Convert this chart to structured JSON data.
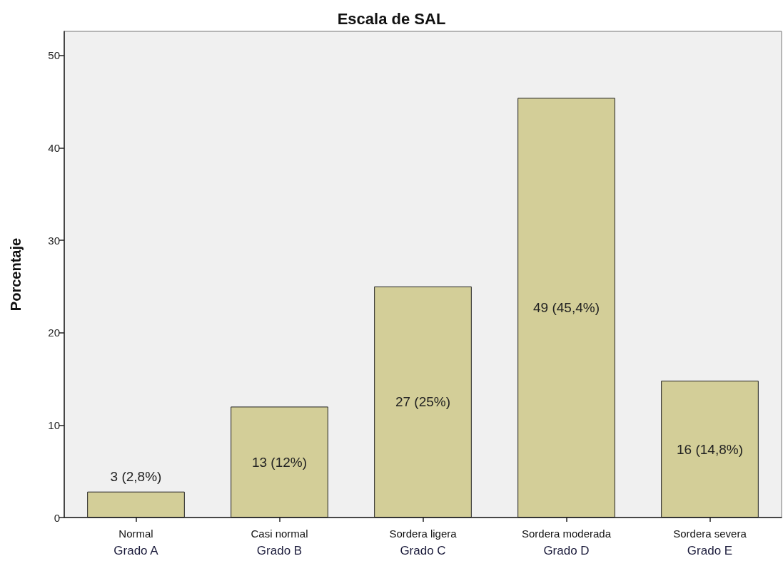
{
  "chart_data": {
    "type": "bar",
    "title": "Escala de SAL",
    "ylabel": "Porcentaje",
    "categories": [
      "Normal\nGrado A",
      "Casi normal\nGrado B",
      "Sordera ligera\nGrado C",
      "Sordera moderada\nGrado D",
      "Sordera severa\nGrado E"
    ],
    "values": [
      2.8,
      12,
      25,
      45.4,
      14.8
    ],
    "color": "#d3ce98",
    "value_labels": [
      "3 (2,8%)",
      "13 (12%)",
      "27 (25%)",
      "49 (45,4%)",
      "16 (14,8%)"
    ],
    "ylim": [
      0,
      52.6
    ],
    "yticks": [
      0,
      10,
      20,
      30,
      40,
      50
    ]
  }
}
